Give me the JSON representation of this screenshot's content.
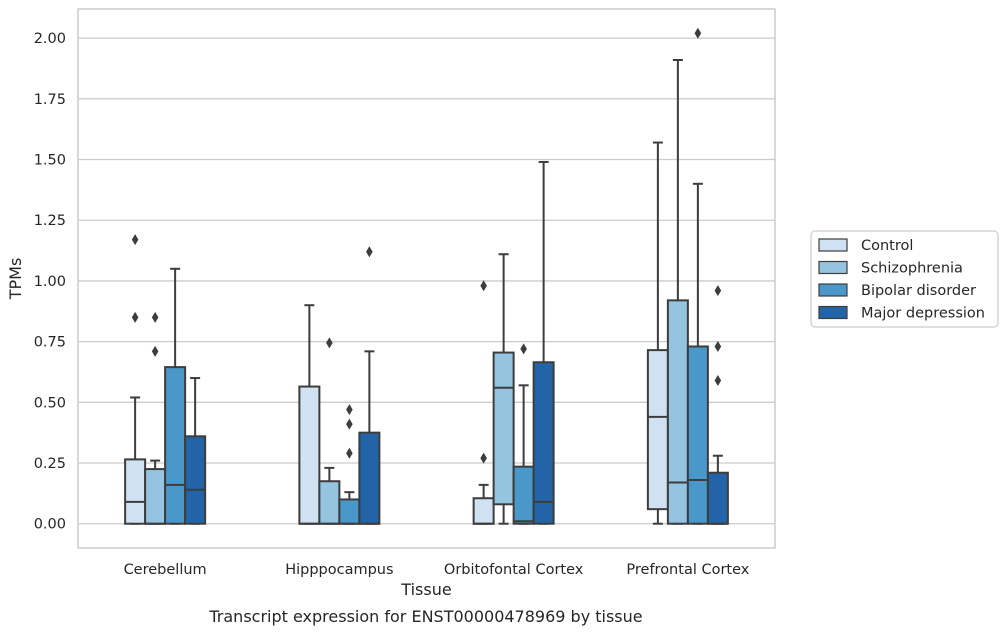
{
  "caption": "Transcript expression for ENST00000478969 by tissue",
  "chart_data": {
    "type": "box",
    "xlabel": "Tissue",
    "ylabel": "TPMs",
    "ylim": [
      -0.1,
      2.12
    ],
    "yticks": [
      0.0,
      0.25,
      0.5,
      0.75,
      1.0,
      1.25,
      1.5,
      1.75,
      2.0
    ],
    "ytick_labels": [
      "0.00",
      "0.25",
      "0.50",
      "0.75",
      "1.00",
      "1.25",
      "1.50",
      "1.75",
      "2.00"
    ],
    "categories": [
      "Cerebellum",
      "Hipppocampus",
      "Orbitofontal Cortex",
      "Prefrontal Cortex"
    ],
    "grid": true,
    "legend_position": "right",
    "series": [
      {
        "name": "Control",
        "color": "#d0e1f2",
        "boxes": [
          {
            "whislo": 0.0,
            "q1": 0.0,
            "med": 0.09,
            "q3": 0.265,
            "whishi": 0.52,
            "fliers": [
              0.85,
              1.17
            ]
          },
          {
            "whislo": 0.0,
            "q1": 0.0,
            "med": 0.0,
            "q3": 0.565,
            "whishi": 0.9,
            "fliers": []
          },
          {
            "whislo": 0.0,
            "q1": 0.0,
            "med": 0.0,
            "q3": 0.105,
            "whishi": 0.16,
            "fliers": [
              0.27,
              0.98
            ]
          },
          {
            "whislo": 0.0,
            "q1": 0.06,
            "med": 0.44,
            "q3": 0.715,
            "whishi": 1.57,
            "fliers": []
          }
        ]
      },
      {
        "name": "Schizophrenia",
        "color": "#94c4df",
        "boxes": [
          {
            "whislo": 0.0,
            "q1": 0.0,
            "med": 0.0,
            "q3": 0.225,
            "whishi": 0.26,
            "fliers": [
              0.71,
              0.85
            ]
          },
          {
            "whislo": 0.0,
            "q1": 0.0,
            "med": 0.0,
            "q3": 0.175,
            "whishi": 0.23,
            "fliers": [
              0.745
            ]
          },
          {
            "whislo": 0.0,
            "q1": 0.08,
            "med": 0.56,
            "q3": 0.705,
            "whishi": 1.11,
            "fliers": []
          },
          {
            "whislo": 0.0,
            "q1": 0.0,
            "med": 0.17,
            "q3": 0.92,
            "whishi": 1.91,
            "fliers": []
          }
        ]
      },
      {
        "name": "Bipolar disorder",
        "color": "#4a98c9",
        "boxes": [
          {
            "whislo": 0.0,
            "q1": 0.0,
            "med": 0.16,
            "q3": 0.645,
            "whishi": 1.05,
            "fliers": []
          },
          {
            "whislo": 0.0,
            "q1": 0.0,
            "med": 0.0,
            "q3": 0.1,
            "whishi": 0.13,
            "fliers": [
              0.29,
              0.41,
              0.47
            ]
          },
          {
            "whislo": 0.0,
            "q1": 0.0,
            "med": 0.01,
            "q3": 0.235,
            "whishi": 0.57,
            "fliers": [
              0.72
            ]
          },
          {
            "whislo": 0.0,
            "q1": 0.0,
            "med": 0.18,
            "q3": 0.73,
            "whishi": 1.4,
            "fliers": [
              2.02
            ]
          }
        ]
      },
      {
        "name": "Major depression",
        "color": "#2264a7",
        "boxes": [
          {
            "whislo": 0.0,
            "q1": 0.0,
            "med": 0.14,
            "q3": 0.36,
            "whishi": 0.6,
            "fliers": []
          },
          {
            "whislo": 0.0,
            "q1": 0.0,
            "med": 0.0,
            "q3": 0.375,
            "whishi": 0.71,
            "fliers": [
              1.12
            ]
          },
          {
            "whislo": 0.0,
            "q1": 0.0,
            "med": 0.09,
            "q3": 0.665,
            "whishi": 1.49,
            "fliers": []
          },
          {
            "whislo": 0.0,
            "q1": 0.0,
            "med": 0.0,
            "q3": 0.21,
            "whishi": 0.28,
            "fliers": [
              0.59,
              0.73,
              0.96
            ]
          }
        ]
      }
    ]
  }
}
